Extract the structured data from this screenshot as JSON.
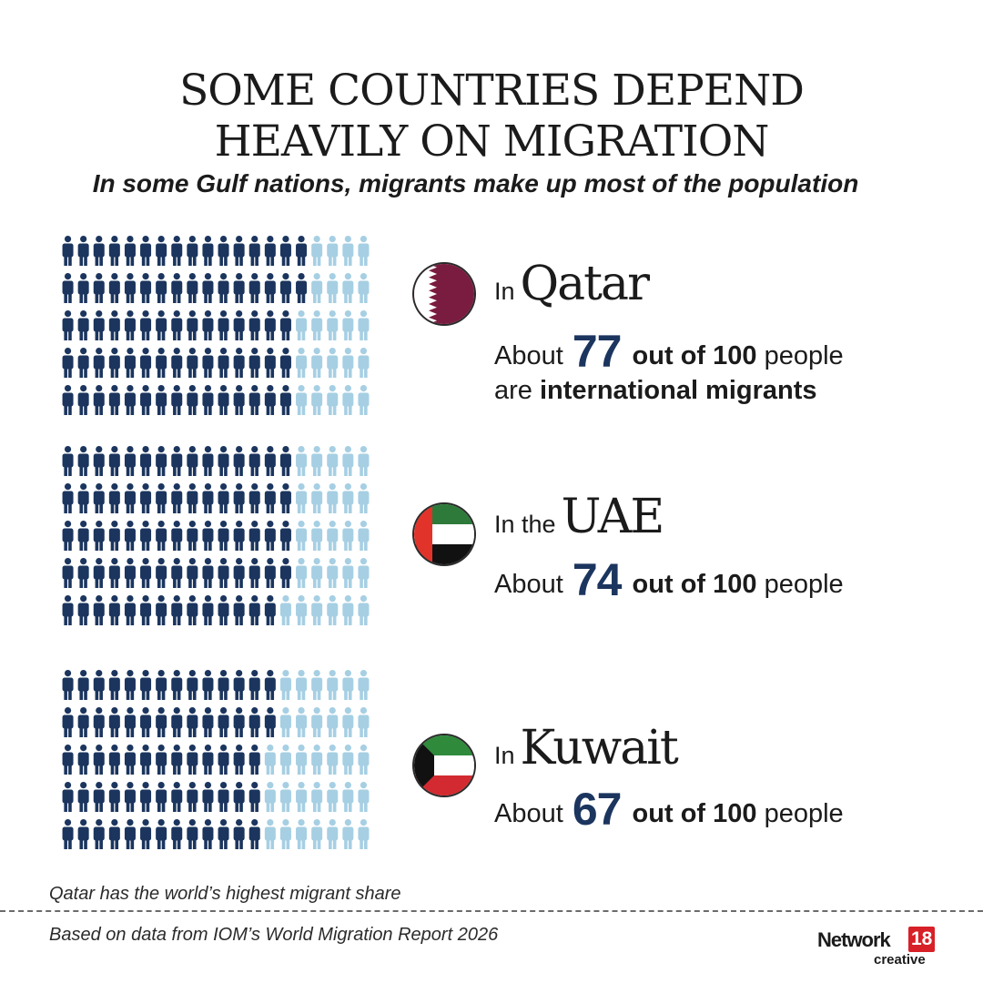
{
  "title_line1": "SOME COUNTRIES DEPEND",
  "title_line2": "HEAVILY ON MIGRATION",
  "subtitle": "In some Gulf nations, migrants make up most of the population",
  "colors": {
    "migrant": "#1b355e",
    "non_migrant": "#a6cfe3",
    "number": "#1b355e"
  },
  "countries": [
    {
      "prefix": "In",
      "name": "Qatar",
      "flag": "qatar-flag",
      "stat_about": "About",
      "stat_number": "77",
      "stat_suffix": "out of 100",
      "stat_people": "people",
      "line2_pre": "are",
      "line2_bold": "international migrants"
    },
    {
      "prefix": "In the",
      "name": "UAE",
      "flag": "uae-flag",
      "stat_about": "About",
      "stat_number": "74",
      "stat_suffix": "out of 100",
      "stat_people": "people"
    },
    {
      "prefix": "In",
      "name": "Kuwait",
      "flag": "kuwait-flag",
      "stat_about": "About",
      "stat_number": "67",
      "stat_suffix": "out of 100",
      "stat_people": "people"
    }
  ],
  "note": "Qatar has the world’s highest migrant share",
  "source": "Based on data from IOM’s World Migration Report 2026",
  "logo": {
    "brand": "Network",
    "badge": "18",
    "sub": "creative"
  },
  "chart_data": [
    {
      "type": "waffle",
      "rows": 5,
      "columns": 20,
      "total": 100,
      "values": [
        77
      ],
      "series": [
        {
          "name": "international migrants",
          "values": [
            77
          ]
        }
      ]
    },
    {
      "type": "waffle",
      "rows": 5,
      "columns": 20,
      "total": 100,
      "values": [
        74
      ]
    },
    {
      "type": "waffle",
      "rows": 5,
      "columns": 20,
      "total": 100,
      "values": [
        67
      ]
    }
  ]
}
